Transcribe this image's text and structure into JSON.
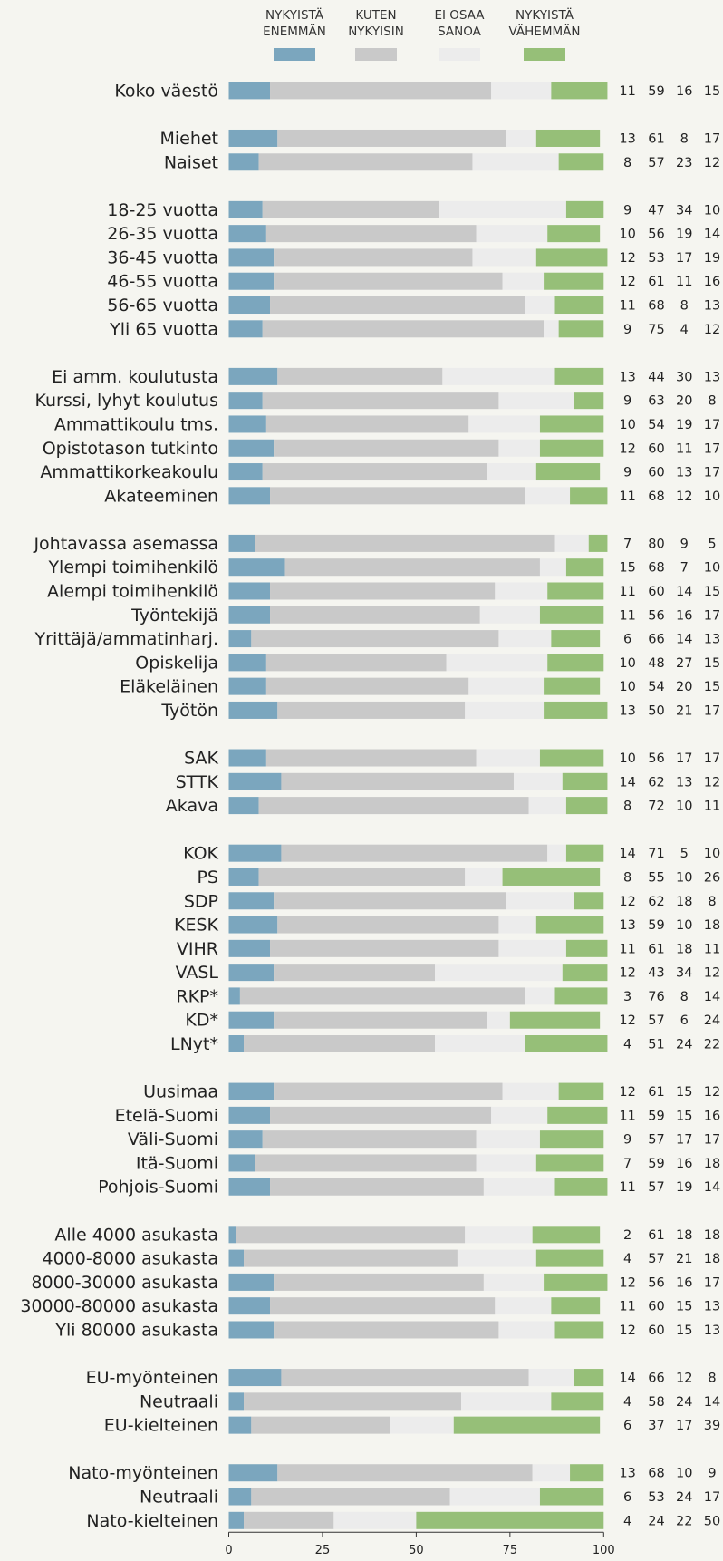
{
  "chart_data": {
    "type": "stacked_bar_horizontal",
    "categories": [
      "Koko väestö",
      null,
      "Miehet",
      "Naiset",
      null,
      "18-25 vuotta",
      "26-35 vuotta",
      "36-45 vuotta",
      "46-55 vuotta",
      "56-65 vuotta",
      "Yli 65 vuotta",
      null,
      "Ei amm. koulutusta",
      "Kurssi, lyhyt koulutus",
      "Ammattikoulu tms.",
      "Opistotason tutkinto",
      "Ammattikorkeakoulu",
      "Akateeminen",
      null,
      "Johtavassa asemassa",
      "Ylempi toimihenkilö",
      "Alempi toimihenkilö",
      "Työntekijä",
      "Yrittäjä/ammatinharj.",
      "Opiskelija",
      "Eläkeläinen",
      "Työtön",
      null,
      "SAK",
      "STTK",
      "Akava",
      null,
      "KOK",
      "PS",
      "SDP",
      "KESK",
      "VIHR",
      "VASL",
      "RKP*",
      "KD*",
      "LNyt*",
      null,
      "Uusimaa",
      "Etelä-Suomi",
      "Väli-Suomi",
      "Itä-Suomi",
      "Pohjois-Suomi",
      null,
      "Alle 4000 asukasta",
      "4000-8000 asukasta",
      "8000-30000 asukasta",
      "30000-80000 asukasta",
      "Yli 80000 asukasta",
      null,
      "EU-myönteinen",
      "Neutraali",
      "EU-kielteinen",
      null,
      "Nato-myönteinen",
      "Neutraali",
      "Nato-kielteinen"
    ],
    "series": [
      {
        "name": "NYKYISTÄ ENEMMÄN",
        "color": "#7ba6be",
        "values": [
          11,
          null,
          13,
          8,
          null,
          9,
          10,
          12,
          12,
          11,
          9,
          null,
          13,
          9,
          10,
          12,
          9,
          11,
          null,
          7,
          15,
          11,
          11,
          6,
          10,
          10,
          13,
          null,
          10,
          14,
          8,
          null,
          14,
          8,
          12,
          13,
          11,
          12,
          3,
          12,
          4,
          null,
          12,
          11,
          9,
          7,
          11,
          null,
          2,
          4,
          12,
          11,
          12,
          null,
          14,
          4,
          6,
          null,
          13,
          6,
          4
        ]
      },
      {
        "name": "KUTEN NYKYISIN",
        "color": "#c9c9c9",
        "values": [
          59,
          null,
          61,
          57,
          null,
          47,
          56,
          53,
          61,
          68,
          75,
          null,
          44,
          63,
          54,
          60,
          60,
          68,
          null,
          80,
          68,
          60,
          56,
          66,
          48,
          54,
          50,
          null,
          56,
          62,
          72,
          null,
          71,
          55,
          62,
          59,
          61,
          43,
          76,
          57,
          51,
          null,
          61,
          59,
          57,
          59,
          57,
          null,
          61,
          57,
          56,
          60,
          60,
          null,
          66,
          58,
          37,
          null,
          68,
          53,
          24
        ]
      },
      {
        "name": "EI OSAA SANOA",
        "color": "#ececec",
        "values": [
          16,
          null,
          8,
          23,
          null,
          34,
          19,
          17,
          11,
          8,
          4,
          null,
          30,
          20,
          19,
          11,
          13,
          12,
          null,
          9,
          7,
          14,
          16,
          14,
          27,
          20,
          21,
          null,
          17,
          13,
          10,
          null,
          5,
          10,
          18,
          10,
          18,
          34,
          8,
          6,
          24,
          null,
          15,
          15,
          17,
          16,
          19,
          null,
          18,
          21,
          16,
          15,
          15,
          null,
          12,
          24,
          17,
          null,
          10,
          24,
          22
        ]
      },
      {
        "name": "NYKYISTÄ VÄHEMMÄN",
        "color": "#96bf78",
        "values": [
          15,
          null,
          17,
          12,
          null,
          10,
          14,
          19,
          16,
          13,
          12,
          null,
          13,
          8,
          17,
          17,
          17,
          10,
          null,
          5,
          10,
          15,
          17,
          13,
          15,
          15,
          17,
          null,
          17,
          12,
          11,
          null,
          10,
          26,
          8,
          18,
          11,
          12,
          14,
          24,
          22,
          null,
          12,
          16,
          17,
          18,
          14,
          null,
          18,
          18,
          17,
          13,
          13,
          null,
          8,
          14,
          39,
          null,
          9,
          17,
          50
        ]
      }
    ],
    "xlim": [
      0,
      100
    ],
    "xticks": [
      0,
      25,
      50,
      75,
      100
    ],
    "grid": false
  }
}
